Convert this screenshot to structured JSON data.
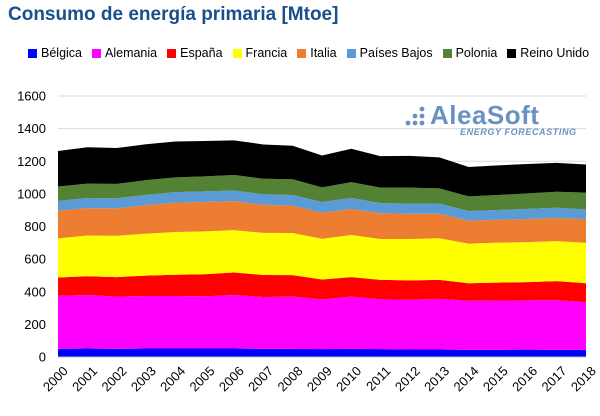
{
  "title": "Consumo de energía primaria [Mtoe]",
  "logo": {
    "name": "AleaSoft",
    "tagline": "ENERGY FORECASTING"
  },
  "chart_data": {
    "type": "area",
    "stacked": true,
    "x": [
      "2000",
      "2001",
      "2002",
      "2003",
      "2004",
      "2005",
      "2006",
      "2007",
      "2008",
      "2009",
      "2010",
      "2011",
      "2012",
      "2013",
      "2014",
      "2015",
      "2016",
      "2017",
      "2018"
    ],
    "ylim": [
      0,
      1600
    ],
    "yticks": [
      0,
      200,
      400,
      600,
      800,
      1000,
      1200,
      1400,
      1600
    ],
    "grid": true,
    "legend_position": "top",
    "series": [
      {
        "name": "Bélgica",
        "color": "#0000ff",
        "values": [
          50,
          52,
          50,
          52,
          52,
          52,
          52,
          50,
          50,
          48,
          50,
          48,
          46,
          46,
          44,
          44,
          45,
          44,
          44
        ]
      },
      {
        "name": "Alemania",
        "color": "#ff00ff",
        "values": [
          325,
          328,
          320,
          322,
          322,
          320,
          328,
          318,
          320,
          305,
          320,
          305,
          306,
          310,
          300,
          302,
          302,
          305,
          292
        ]
      },
      {
        "name": "España",
        "color": "#ff0000",
        "values": [
          112,
          115,
          120,
          125,
          130,
          135,
          138,
          135,
          132,
          122,
          120,
          120,
          118,
          117,
          108,
          110,
          112,
          116,
          116
        ]
      },
      {
        "name": "Francia",
        "color": "#ffff00",
        "values": [
          240,
          250,
          253,
          257,
          262,
          263,
          260,
          258,
          258,
          250,
          258,
          250,
          253,
          255,
          243,
          245,
          245,
          245,
          248
        ]
      },
      {
        "name": "Italia",
        "color": "#ed7d31",
        "values": [
          170,
          168,
          168,
          175,
          180,
          180,
          178,
          172,
          168,
          160,
          160,
          158,
          155,
          150,
          140,
          140,
          142,
          142,
          145
        ]
      },
      {
        "name": "Países Bajos",
        "color": "#5b9bd5",
        "values": [
          60,
          62,
          62,
          63,
          65,
          65,
          65,
          65,
          65,
          65,
          67,
          62,
          62,
          63,
          60,
          60,
          62,
          63,
          60
        ]
      },
      {
        "name": "Polonia",
        "color": "#548235",
        "values": [
          88,
          88,
          88,
          90,
          90,
          92,
          95,
          95,
          97,
          90,
          97,
          95,
          98,
          93,
          90,
          92,
          95,
          98,
          103
        ]
      },
      {
        "name": "Reino Unido",
        "color": "#000000",
        "values": [
          218,
          223,
          220,
          220,
          220,
          217,
          212,
          210,
          205,
          195,
          205,
          193,
          195,
          190,
          180,
          182,
          180,
          177,
          172
        ]
      }
    ]
  }
}
